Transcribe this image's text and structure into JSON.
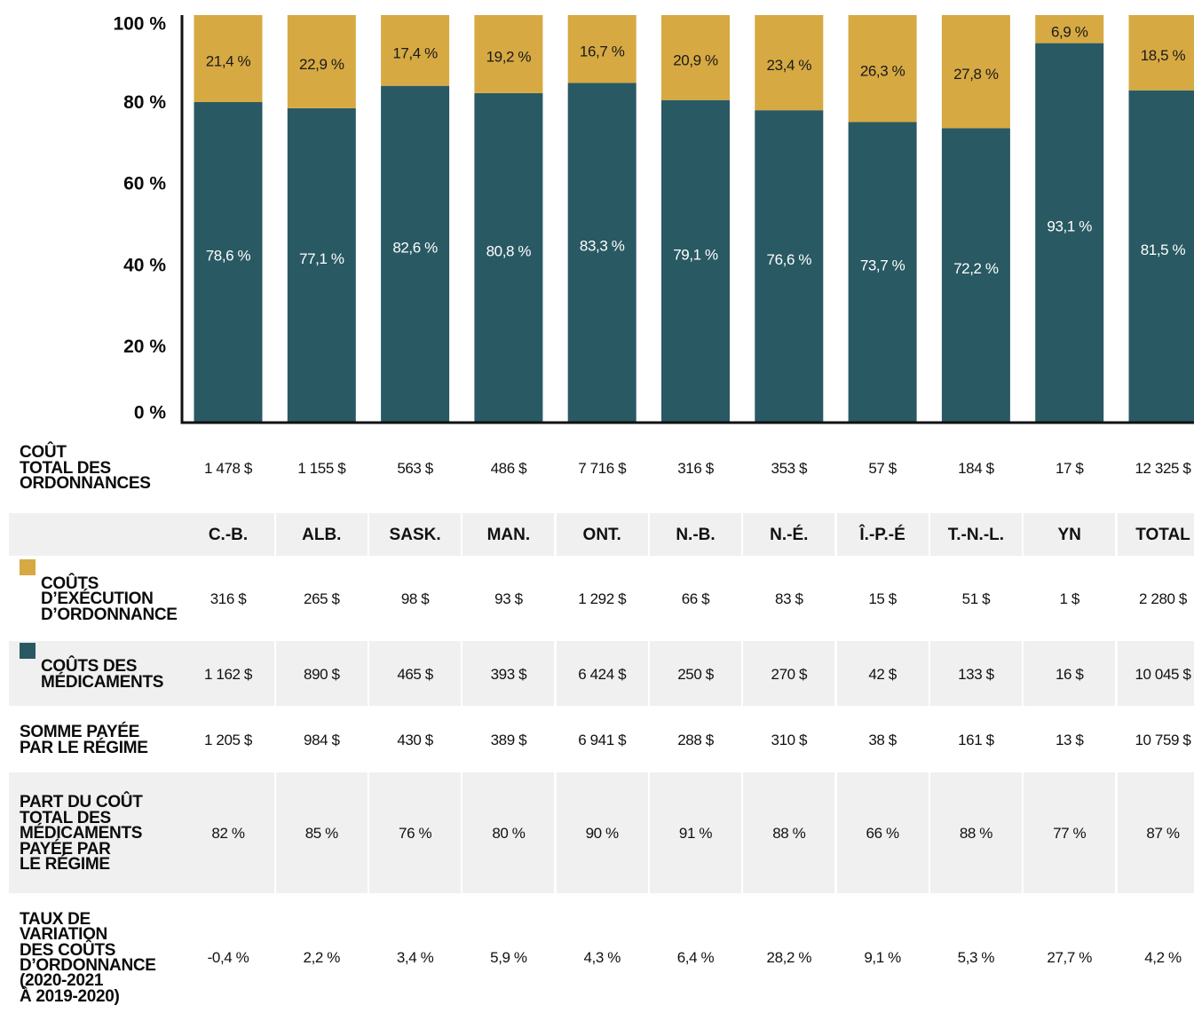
{
  "chart_data": {
    "type": "bar",
    "stacked": true,
    "categories": [
      "C.-B.",
      "ALB.",
      "SASK.",
      "MAN.",
      "ONT.",
      "N.-B.",
      "N.-É.",
      "Î.-P.-É",
      "T.-N.-L.",
      "YN",
      "TOTAL"
    ],
    "series": [
      {
        "name": "COÛTS DES\nMÉDICAMENTS",
        "color": "#295963",
        "values": [
          78.6,
          77.1,
          82.6,
          80.8,
          83.3,
          79.1,
          76.6,
          73.7,
          72.2,
          93.1,
          81.5
        ],
        "value_labels": [
          "78,6 %",
          "77,1 %",
          "82,6 %",
          "80,8 %",
          "83,3 %",
          "79,1 %",
          "76,6 %",
          "73,7 %",
          "72,2 %",
          "93,1 %",
          "81,5 %"
        ],
        "amounts": [
          "1 162 $",
          "890 $",
          "465 $",
          "393 $",
          "6 424 $",
          "250 $",
          "270 $",
          "42 $",
          "133 $",
          "16 $",
          "10 045 $"
        ]
      },
      {
        "name": "COÛTS\nD’EXÉCUTION\nD’ORDONNANCE",
        "color": "#d6a943",
        "values": [
          21.4,
          22.9,
          17.4,
          19.2,
          16.7,
          20.9,
          23.4,
          26.3,
          27.8,
          6.9,
          18.5
        ],
        "value_labels": [
          "21,4 %",
          "22,9 %",
          "17,4 %",
          "19,2 %",
          "16,7 %",
          "20,9 %",
          "23,4 %",
          "26,3 %",
          "27,8 %",
          "6,9 %",
          "18,5 %"
        ],
        "amounts": [
          "316 $",
          "265 $",
          "98 $",
          "93 $",
          "1 292 $",
          "66 $",
          "83 $",
          "15 $",
          "51 $",
          "1 $",
          "2 280 $"
        ]
      }
    ],
    "ylim": [
      0,
      100
    ],
    "yticks": [
      {
        "value": 0,
        "label": "0 %"
      },
      {
        "value": 20,
        "label": "20 %"
      },
      {
        "value": 40,
        "label": "40 %"
      },
      {
        "value": 60,
        "label": "60 %"
      },
      {
        "value": 80,
        "label": "80 %"
      },
      {
        "value": 100,
        "label": "100 %"
      }
    ],
    "grid": false
  },
  "table": {
    "rows": [
      {
        "label": "COÛT\nTOTAL DES\nORDONNANCES",
        "cells": [
          "1 478 $",
          "1 155 $",
          "563 $",
          "486 $",
          "7 716 $",
          "316 $",
          "353 $",
          "57 $",
          "184 $",
          "17 $",
          "12 325 $"
        ]
      },
      {
        "label": "SOMME PAYÉE\nPAR LE RÉGIME",
        "cells": [
          "1 205 $",
          "984 $",
          "430 $",
          "389 $",
          "6 941 $",
          "288 $",
          "310 $",
          "38 $",
          "161 $",
          "13 $",
          "10 759 $"
        ]
      },
      {
        "label": "PART DU COÛT\nTOTAL DES\nMÉDICAMENTS\nPAYÉE PAR\nLE RÉGIME",
        "cells": [
          "82 %",
          "85 %",
          "76 %",
          "80 %",
          "90 %",
          "91 %",
          "88 %",
          "66 %",
          "88 %",
          "77 %",
          "87 %"
        ]
      },
      {
        "label": "TAUX DE\nVARIATION\nDES COÛTS\nD’ORDONNANCE\n(2020-2021\nÀ 2019-2020)",
        "cells": [
          "-0,4 %",
          "2,2 %",
          "3,4 %",
          "5,9 %",
          "4,3 %",
          "6,4 %",
          "28,2 %",
          "9,1 %",
          "5,3 %",
          "27,7 %",
          "4,2 %"
        ]
      }
    ]
  }
}
